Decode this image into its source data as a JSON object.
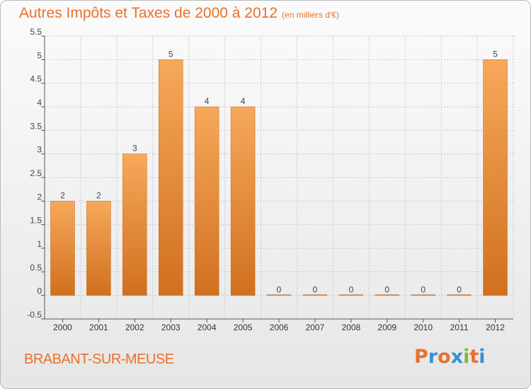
{
  "chart_data": {
    "type": "bar",
    "title": "Autres Impôts et Taxes de 2000 à 2012",
    "subtitle": "(en milliers d'€)",
    "categories": [
      "2000",
      "2001",
      "2002",
      "2003",
      "2004",
      "2005",
      "2006",
      "2007",
      "2008",
      "2009",
      "2010",
      "2011",
      "2012"
    ],
    "values": [
      2,
      2,
      3,
      5,
      4,
      4,
      0,
      0,
      0,
      0,
      0,
      0,
      5
    ],
    "data_labels": [
      "2",
      "2",
      "3",
      "5",
      "4",
      "4",
      "0",
      "0",
      "0",
      "0",
      "0",
      "0",
      "5"
    ],
    "ylim": [
      -0.5,
      5.5
    ],
    "y_ticks": [
      "-0.5",
      "0",
      "0.5",
      "1",
      "1.5",
      "2",
      "2.5",
      "3",
      "3.5",
      "4",
      "4.5",
      "5",
      "5.5"
    ],
    "grid": true,
    "legend": "none",
    "bar_color": "#f0913c",
    "xlabel": "",
    "ylabel": ""
  },
  "footer": {
    "place": "BRABANT-SUR-MEUSE",
    "brand": "Proxiti"
  },
  "colors": {
    "title": "#e8712b",
    "grid": "#c8c8c8",
    "axis": "#555555",
    "brand_letters": [
      "#e8712b",
      "#3a8fd0",
      "#e8712b",
      "#3a8fd0",
      "#7cba3a",
      "#e8712b",
      "#3a8fd0"
    ]
  }
}
